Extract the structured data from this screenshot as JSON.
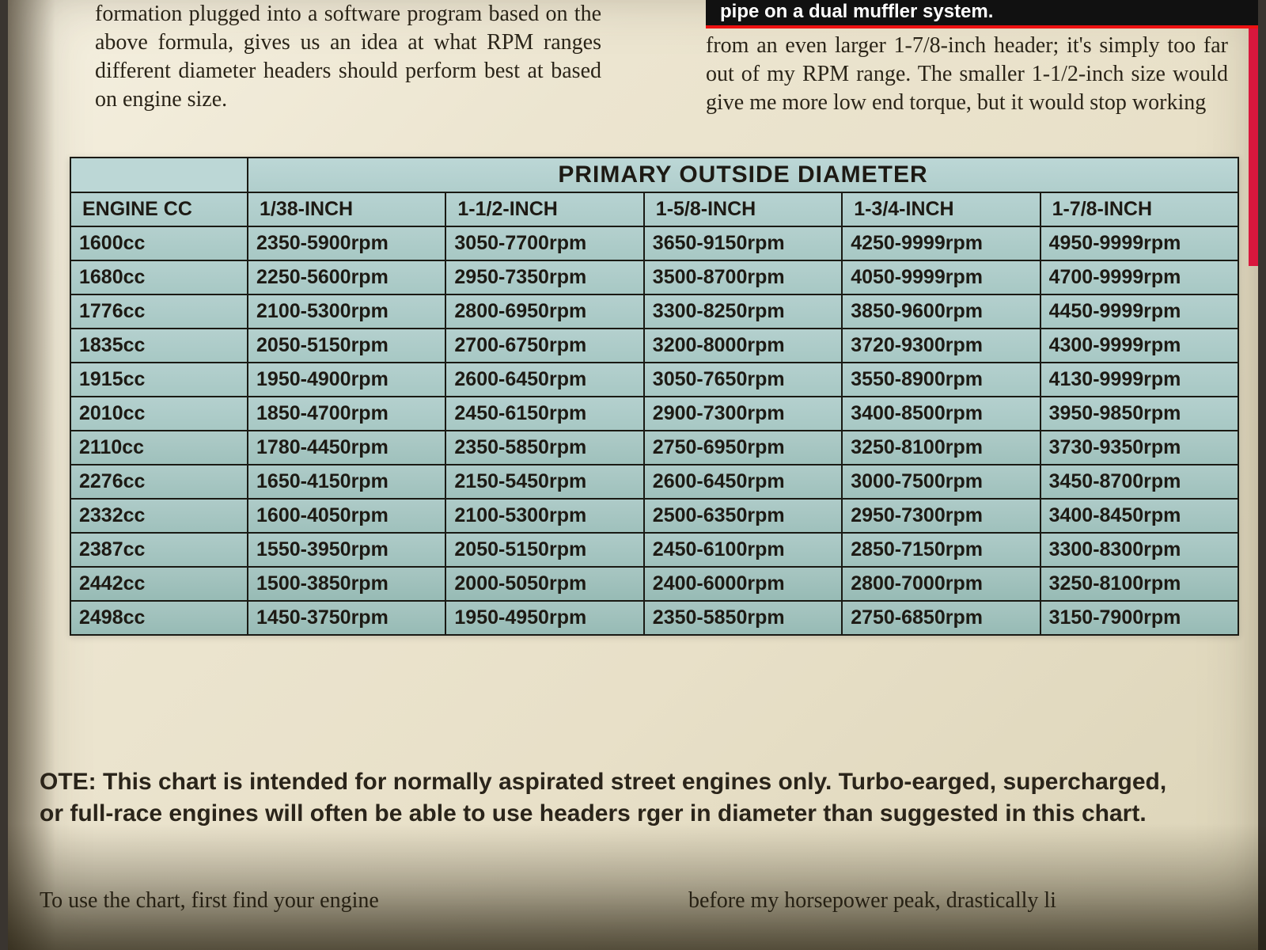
{
  "caption_dark": "pipe on a dual muffler system.",
  "para_left": "formation plugged into a software program based on the above formula, gives us an idea at what RPM ranges different diameter headers should perform best at based on engine size.",
  "para_right": "from an even larger 1-7/8-inch header; it's simply too far out of my RPM range. The smaller 1-1/2-inch size would give me more low end torque, but it would stop working",
  "table": {
    "title": "PRIMARY OUTSIDE DIAMETER",
    "corner": "ENGINE CC",
    "columns": [
      "1/38-INCH",
      "1-1/2-INCH",
      "1-5/8-INCH",
      "1-3/4-INCH",
      "1-7/8-INCH"
    ],
    "rows": [
      {
        "engine": "1600cc",
        "cells": [
          "2350-5900rpm",
          "3050-7700rpm",
          "3650-9150rpm",
          "4250-9999rpm",
          "4950-9999rpm"
        ]
      },
      {
        "engine": "1680cc",
        "cells": [
          "2250-5600rpm",
          "2950-7350rpm",
          "3500-8700rpm",
          "4050-9999rpm",
          "4700-9999rpm"
        ]
      },
      {
        "engine": "1776cc",
        "cells": [
          "2100-5300rpm",
          "2800-6950rpm",
          "3300-8250rpm",
          "3850-9600rpm",
          "4450-9999rpm"
        ]
      },
      {
        "engine": "1835cc",
        "cells": [
          "2050-5150rpm",
          "2700-6750rpm",
          "3200-8000rpm",
          "3720-9300rpm",
          "4300-9999rpm"
        ]
      },
      {
        "engine": "1915cc",
        "cells": [
          "1950-4900rpm",
          "2600-6450rpm",
          "3050-7650rpm",
          "3550-8900rpm",
          "4130-9999rpm"
        ]
      },
      {
        "engine": "2010cc",
        "cells": [
          "1850-4700rpm",
          "2450-6150rpm",
          "2900-7300rpm",
          "3400-8500rpm",
          "3950-9850rpm"
        ]
      },
      {
        "engine": "2110cc",
        "cells": [
          "1780-4450rpm",
          "2350-5850rpm",
          "2750-6950rpm",
          "3250-8100rpm",
          "3730-9350rpm"
        ]
      },
      {
        "engine": "2276cc",
        "cells": [
          "1650-4150rpm",
          "2150-5450rpm",
          "2600-6450rpm",
          "3000-7500rpm",
          "3450-8700rpm"
        ]
      },
      {
        "engine": "2332cc",
        "cells": [
          "1600-4050rpm",
          "2100-5300rpm",
          "2500-6350rpm",
          "2950-7300rpm",
          "3400-8450rpm"
        ]
      },
      {
        "engine": "2387cc",
        "cells": [
          "1550-3950rpm",
          "2050-5150rpm",
          "2450-6100rpm",
          "2850-7150rpm",
          "3300-8300rpm"
        ]
      },
      {
        "engine": "2442cc",
        "cells": [
          "1500-3850rpm",
          "2000-5050rpm",
          "2400-6000rpm",
          "2800-7000rpm",
          "3250-8100rpm"
        ]
      },
      {
        "engine": "2498cc",
        "cells": [
          "1450-3750rpm",
          "1950-4950rpm",
          "2350-5850rpm",
          "2750-6850rpm",
          "3150-7900rpm"
        ]
      }
    ],
    "header_bg": "#b7d3d2",
    "border_color": "#1a1a14",
    "font_family": "Arial",
    "title_fontsize": 30,
    "header_fontsize": 25,
    "cell_fontsize": 25
  },
  "note": "OTE: This chart is intended for normally aspirated street engines only. Turbo-​​earged, supercharged, or full-race engines will often be able to use headers rger in diameter than suggested in this chart.",
  "tail_left": "To use the chart, first find your engine",
  "tail_right": "before my horsepower peak, drastically li",
  "colors": {
    "page_bg": "#ece5d0",
    "text": "#2a2418",
    "table_bg": "#b4d0ce",
    "accent_red": "#d9173d",
    "caption_bg": "#111111",
    "caption_text": "#ffffff"
  }
}
